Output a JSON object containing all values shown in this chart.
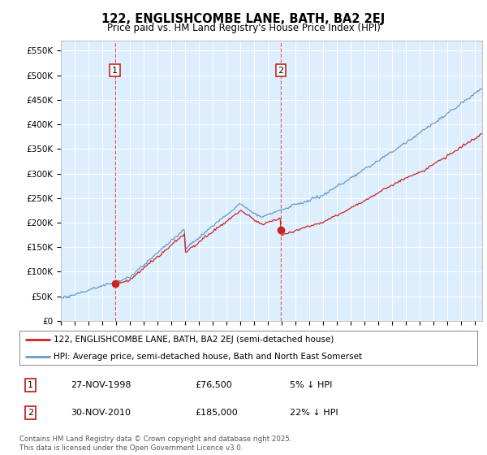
{
  "title": "122, ENGLISHCOMBE LANE, BATH, BA2 2EJ",
  "subtitle": "Price paid vs. HM Land Registry's House Price Index (HPI)",
  "xlim_start": 1995.5,
  "xlim_end": 2025.5,
  "ylim": [
    0,
    570000
  ],
  "yticks": [
    0,
    50000,
    100000,
    150000,
    200000,
    250000,
    300000,
    350000,
    400000,
    450000,
    500000,
    550000
  ],
  "ytick_labels": [
    "£0",
    "£50K",
    "£100K",
    "£150K",
    "£200K",
    "£250K",
    "£300K",
    "£350K",
    "£400K",
    "£450K",
    "£500K",
    "£550K"
  ],
  "background_color": "#ffffff",
  "plot_bg_color": "#ddeeff",
  "grid_color": "#ffffff",
  "hpi_line_color": "#6699cc",
  "price_line_color": "#cc2222",
  "purchase1_year": 1998.91,
  "purchase1_price": 76500,
  "purchase2_year": 2010.92,
  "purchase2_price": 185000,
  "legend_line1": "122, ENGLISHCOMBE LANE, BATH, BA2 2EJ (semi-detached house)",
  "legend_line2": "HPI: Average price, semi-detached house, Bath and North East Somerset",
  "annotation1_date": "27-NOV-1998",
  "annotation1_price": "£76,500",
  "annotation1_pct": "5% ↓ HPI",
  "annotation2_date": "30-NOV-2010",
  "annotation2_price": "£185,000",
  "annotation2_pct": "22% ↓ HPI",
  "footer": "Contains HM Land Registry data © Crown copyright and database right 2025.\nThis data is licensed under the Open Government Licence v3.0."
}
